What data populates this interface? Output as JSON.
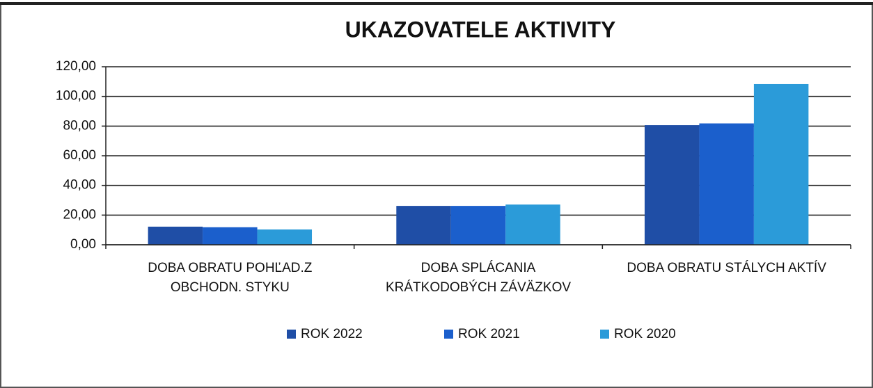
{
  "chart_data": {
    "type": "bar",
    "title": "UKAZOVATELE AKTIVITY",
    "categories": [
      "DOBA OBRATU POHĽAD.Z OBCHODN. STYKU",
      "DOBA SPLÁCANIA KRÁTKODOBÝCH ZÁVÄZKOV",
      "DOBA OBRATU STÁLYCH AKTÍV"
    ],
    "series": [
      {
        "name": "ROK 2022",
        "color": "#1f4ea6",
        "values": [
          12.2,
          26.2,
          80.6
        ]
      },
      {
        "name": "ROK 2021",
        "color": "#1b5fcc",
        "values": [
          11.8,
          26.2,
          81.8
        ]
      },
      {
        "name": "ROK 2020",
        "color": "#2b9bd9",
        "values": [
          10.3,
          27.1,
          108.3
        ]
      }
    ],
    "ylim": [
      0,
      120
    ],
    "yticks": [
      {
        "value": 0,
        "label": "0,00"
      },
      {
        "value": 20,
        "label": "20,00"
      },
      {
        "value": 40,
        "label": "40,00"
      },
      {
        "value": 60,
        "label": "60,00"
      },
      {
        "value": 80,
        "label": "80,00"
      },
      {
        "value": 100,
        "label": "100,00"
      },
      {
        "value": 120,
        "label": "120,00"
      }
    ],
    "grid": true,
    "legend": "bottom"
  }
}
